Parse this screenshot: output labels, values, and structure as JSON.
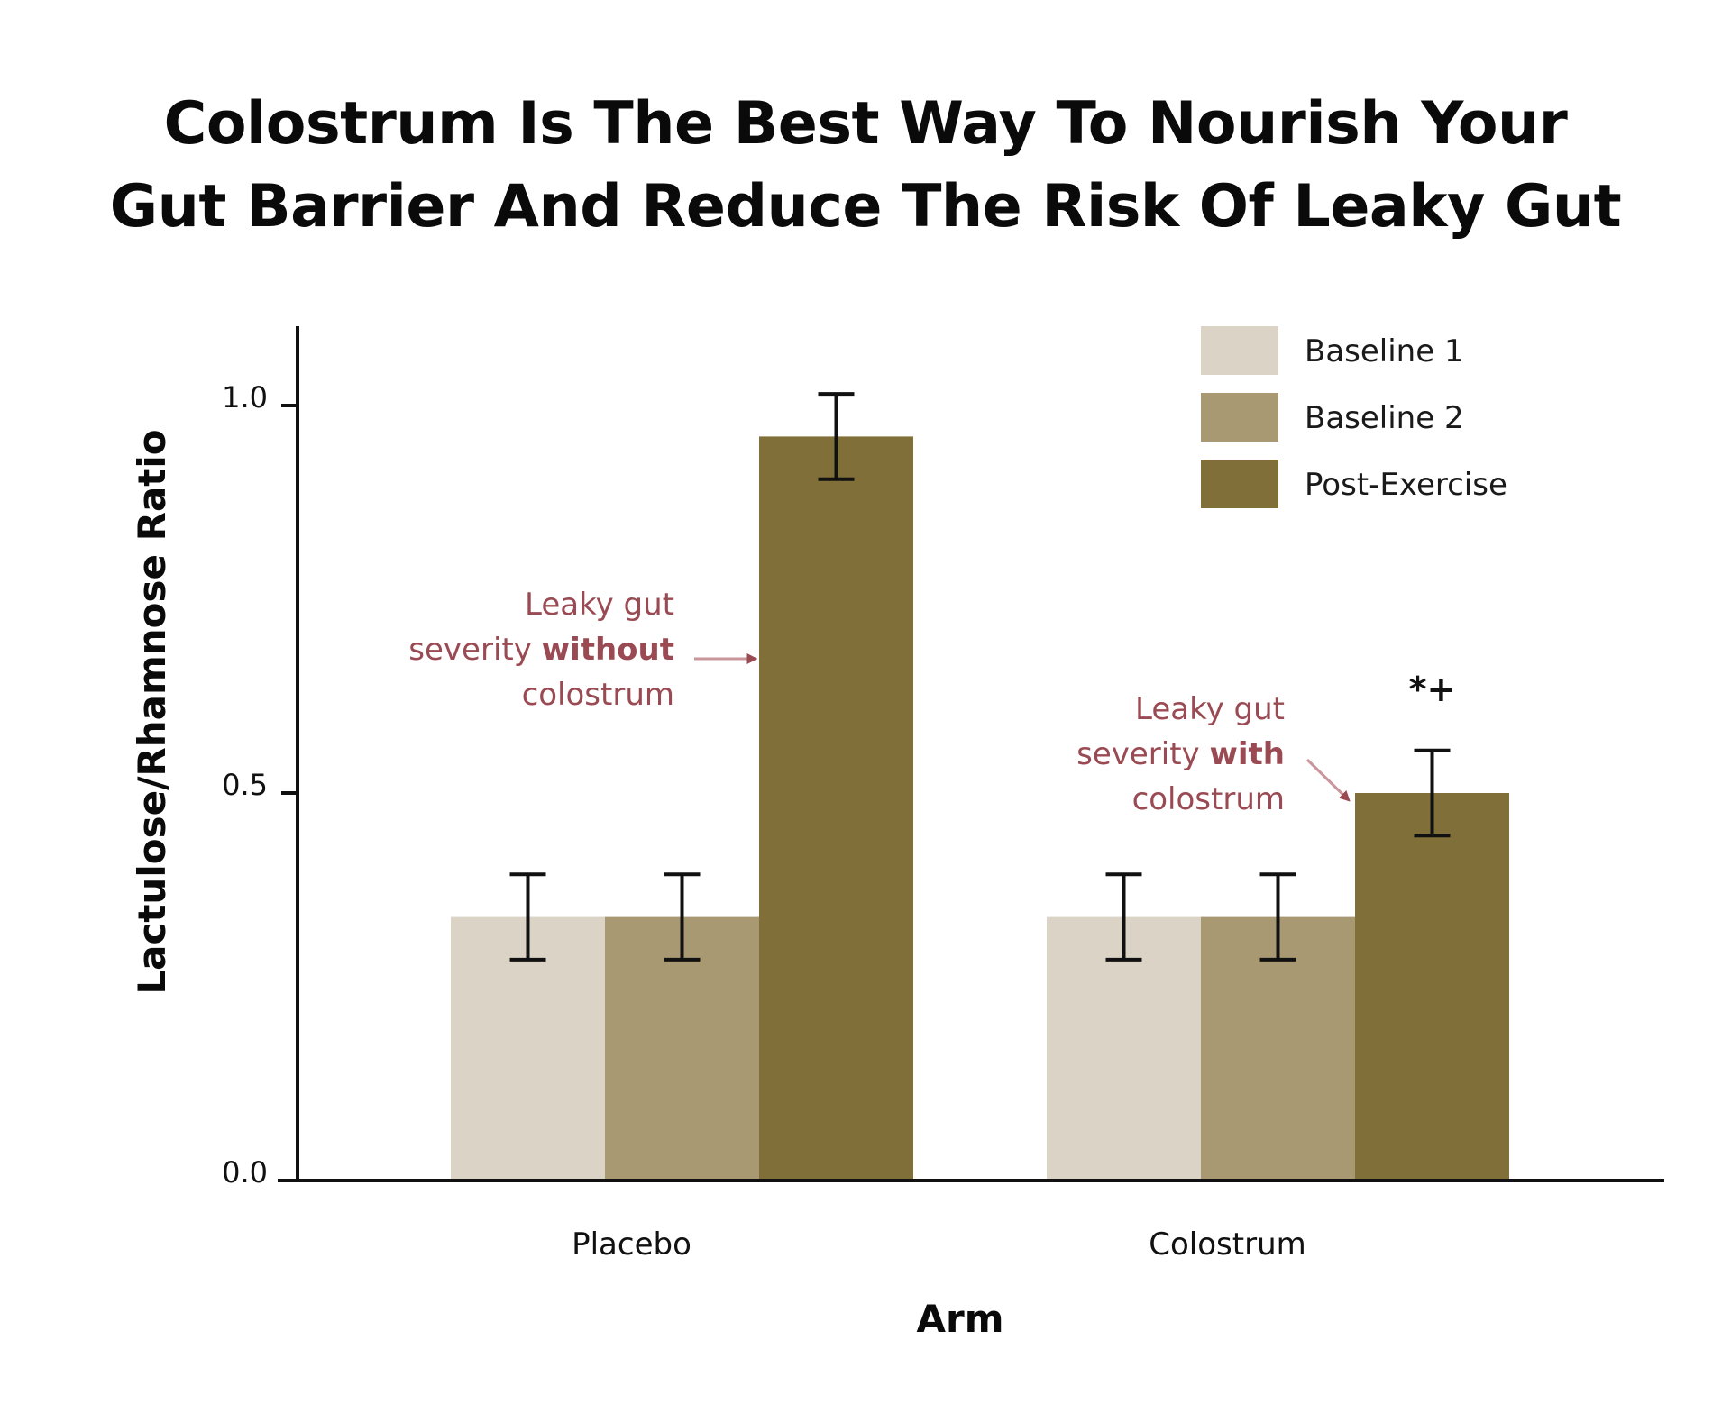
{
  "chart_data": {
    "type": "bar",
    "title_lines": [
      "Colostrum Is The Best Way To Nourish Your",
      "Gut Barrier And Reduce The Risk Of Leaky Gut"
    ],
    "xlabel": "Arm",
    "ylabel": "Lactulose/Rhamnose Ratio",
    "ylim": [
      0,
      1.1
    ],
    "yticks": [
      "0.0",
      "0.5",
      "1.0"
    ],
    "ytick_values": [
      0,
      0.5,
      1.0
    ],
    "categories": [
      "Placebo",
      "Colostrum"
    ],
    "series": [
      {
        "name": "Baseline 1",
        "color": "#dbd4c6",
        "values": [
          0.34,
          0.34
        ],
        "error": [
          0.055,
          0.055
        ]
      },
      {
        "name": "Baseline 2",
        "color": "#a89972",
        "values": [
          0.34,
          0.34
        ],
        "error": [
          0.055,
          0.055
        ]
      },
      {
        "name": "Post-Exercise",
        "color": "#806f38",
        "values": [
          0.96,
          0.5
        ],
        "error": [
          0.055,
          0.055
        ]
      }
    ],
    "legend_position": "top-right",
    "grid": false,
    "significance_marker": "*+",
    "annotations": [
      {
        "lines": [
          [
            "Leaky gut",
            ""
          ],
          [
            "severity ",
            "without"
          ],
          [
            "colostrum",
            ""
          ]
        ],
        "color": "#9a4a52"
      },
      {
        "lines": [
          [
            "Leaky gut",
            ""
          ],
          [
            "severity ",
            "with"
          ],
          [
            "colostrum",
            ""
          ]
        ],
        "color": "#9a4a52"
      }
    ]
  }
}
